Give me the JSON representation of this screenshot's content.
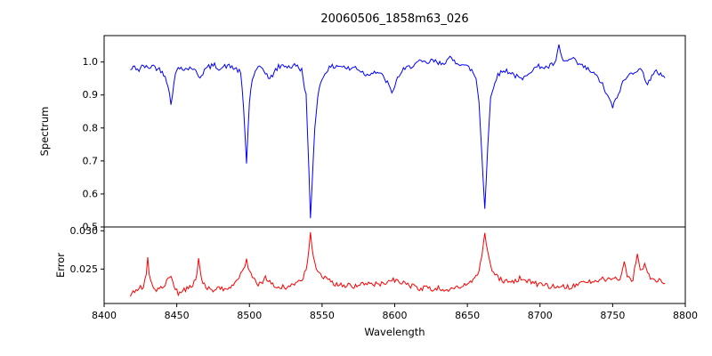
{
  "chart_data": {
    "type": "line",
    "title": "20060506_1858m63_026",
    "xlabel": "Wavelength",
    "xlim": [
      8400,
      8800
    ],
    "x_ticks": [
      8400,
      8450,
      8500,
      8550,
      8600,
      8650,
      8700,
      8750,
      8800
    ],
    "x_tick_labels": [
      "8400",
      "8450",
      "8500",
      "8550",
      "8600",
      "8650",
      "8700",
      "8750",
      "8800"
    ],
    "grid": false,
    "legend": "none",
    "background": "#ffffff",
    "frame_color": "#000000",
    "subplots": [
      {
        "name": "spectrum",
        "ylabel": "Spectrum",
        "ylim": [
          0.5,
          1.08
        ],
        "y_ticks": [
          0.5,
          0.6,
          0.7,
          0.8,
          0.9,
          1.0
        ],
        "y_tick_labels": [
          "0.5",
          "0.6",
          "0.7",
          "0.8",
          "0.9",
          "1.0"
        ],
        "series": [
          {
            "name": "spectrum",
            "color": "#0000ff",
            "noise": 0.008,
            "points": [
              [
                8418,
                0.975
              ],
              [
                8421,
                0.985
              ],
              [
                8424,
                0.975
              ],
              [
                8427,
                0.99
              ],
              [
                8430,
                0.98
              ],
              [
                8433,
                0.99
              ],
              [
                8436,
                0.982
              ],
              [
                8439,
                0.975
              ],
              [
                8442,
                0.96
              ],
              [
                8444,
                0.93
              ],
              [
                8446,
                0.87
              ],
              [
                8448,
                0.94
              ],
              [
                8450,
                0.975
              ],
              [
                8453,
                0.985
              ],
              [
                8457,
                0.978
              ],
              [
                8460,
                0.985
              ],
              [
                8463,
                0.97
              ],
              [
                8466,
                0.955
              ],
              [
                8469,
                0.975
              ],
              [
                8472,
                0.985
              ],
              [
                8476,
                0.99
              ],
              [
                8480,
                0.98
              ],
              [
                8484,
                0.988
              ],
              [
                8488,
                0.985
              ],
              [
                8492,
                0.975
              ],
              [
                8494,
                0.965
              ],
              [
                8496,
                0.86
              ],
              [
                8498,
                0.695
              ],
              [
                8500,
                0.88
              ],
              [
                8502,
                0.95
              ],
              [
                8505,
                0.975
              ],
              [
                8508,
                0.985
              ],
              [
                8511,
                0.97
              ],
              [
                8514,
                0.945
              ],
              [
                8517,
                0.97
              ],
              [
                8520,
                0.985
              ],
              [
                8524,
                0.99
              ],
              [
                8528,
                0.985
              ],
              [
                8532,
                0.99
              ],
              [
                8536,
                0.975
              ],
              [
                8539,
                0.9
              ],
              [
                8541,
                0.66
              ],
              [
                8542,
                0.52
              ],
              [
                8543,
                0.62
              ],
              [
                8545,
                0.8
              ],
              [
                8547,
                0.9
              ],
              [
                8550,
                0.95
              ],
              [
                8553,
                0.975
              ],
              [
                8557,
                0.985
              ],
              [
                8561,
                0.99
              ],
              [
                8565,
                0.985
              ],
              [
                8569,
                0.978
              ],
              [
                8573,
                0.985
              ],
              [
                8577,
                0.972
              ],
              [
                8581,
                0.96
              ],
              [
                8585,
                0.972
              ],
              [
                8589,
                0.968
              ],
              [
                8593,
                0.95
              ],
              [
                8596,
                0.93
              ],
              [
                8598,
                0.9
              ],
              [
                8600,
                0.93
              ],
              [
                8603,
                0.96
              ],
              [
                8606,
                0.975
              ],
              [
                8610,
                0.985
              ],
              [
                8614,
                0.995
              ],
              [
                8618,
                1.0
              ],
              [
                8622,
                0.995
              ],
              [
                8626,
                1.005
              ],
              [
                8630,
                0.995
              ],
              [
                8634,
                1.0
              ],
              [
                8638,
                1.01
              ],
              [
                8642,
                1.0
              ],
              [
                8646,
                0.995
              ],
              [
                8650,
                0.985
              ],
              [
                8653,
                0.975
              ],
              [
                8656,
                0.95
              ],
              [
                8658,
                0.88
              ],
              [
                8660,
                0.72
              ],
              [
                8662,
                0.555
              ],
              [
                8664,
                0.74
              ],
              [
                8666,
                0.89
              ],
              [
                8669,
                0.945
              ],
              [
                8672,
                0.965
              ],
              [
                8676,
                0.975
              ],
              [
                8680,
                0.968
              ],
              [
                8684,
                0.955
              ],
              [
                8688,
                0.945
              ],
              [
                8692,
                0.97
              ],
              [
                8696,
                0.98
              ],
              [
                8700,
                0.988
              ],
              [
                8704,
                0.982
              ],
              [
                8708,
                0.99
              ],
              [
                8711,
                1.0
              ],
              [
                8713,
                1.05
              ],
              [
                8715,
                1.01
              ],
              [
                8718,
                1.0
              ],
              [
                8722,
                1.01
              ],
              [
                8726,
                0.995
              ],
              [
                8730,
                0.985
              ],
              [
                8734,
                0.975
              ],
              [
                8738,
                0.96
              ],
              [
                8742,
                0.94
              ],
              [
                8746,
                0.9
              ],
              [
                8750,
                0.865
              ],
              [
                8753,
                0.89
              ],
              [
                8756,
                0.93
              ],
              [
                8760,
                0.955
              ],
              [
                8764,
                0.97
              ],
              [
                8768,
                0.98
              ],
              [
                8771,
                0.965
              ],
              [
                8774,
                0.935
              ],
              [
                8777,
                0.955
              ],
              [
                8780,
                0.97
              ],
              [
                8783,
                0.965
              ],
              [
                8786,
                0.955
              ]
            ]
          }
        ]
      },
      {
        "name": "error",
        "ylabel": "Error",
        "ylim": [
          0.0205,
          0.0305
        ],
        "y_ticks": [
          0.025,
          0.03
        ],
        "y_tick_labels": [
          "0.025",
          "0.030"
        ],
        "series": [
          {
            "name": "error",
            "color": "#ff0000",
            "noise": 0.00035,
            "points": [
              [
                8418,
                0.0215
              ],
              [
                8421,
                0.0222
              ],
              [
                8424,
                0.0225
              ],
              [
                8427,
                0.0228
              ],
              [
                8429,
                0.0242
              ],
              [
                8430,
                0.0265
              ],
              [
                8431,
                0.0245
              ],
              [
                8433,
                0.0228
              ],
              [
                8436,
                0.0222
              ],
              [
                8439,
                0.0224
              ],
              [
                8442,
                0.0228
              ],
              [
                8444,
                0.0238
              ],
              [
                8446,
                0.0242
              ],
              [
                8448,
                0.0228
              ],
              [
                8451,
                0.0218
              ],
              [
                8454,
                0.0222
              ],
              [
                8457,
                0.0225
              ],
              [
                8460,
                0.0228
              ],
              [
                8463,
                0.0235
              ],
              [
                8465,
                0.0262
              ],
              [
                8467,
                0.0235
              ],
              [
                8470,
                0.0226
              ],
              [
                8474,
                0.0222
              ],
              [
                8478,
                0.0224
              ],
              [
                8482,
                0.0225
              ],
              [
                8486,
                0.0226
              ],
              [
                8490,
                0.023
              ],
              [
                8493,
                0.0238
              ],
              [
                8496,
                0.0252
              ],
              [
                8498,
                0.0262
              ],
              [
                8500,
                0.0248
              ],
              [
                8502,
                0.0238
              ],
              [
                8505,
                0.023
              ],
              [
                8508,
                0.023
              ],
              [
                8511,
                0.0238
              ],
              [
                8514,
                0.0232
              ],
              [
                8517,
                0.0228
              ],
              [
                8520,
                0.0226
              ],
              [
                8524,
                0.0226
              ],
              [
                8528,
                0.0228
              ],
              [
                8532,
                0.023
              ],
              [
                8536,
                0.0234
              ],
              [
                8539,
                0.0252
              ],
              [
                8541,
                0.0275
              ],
              [
                8542,
                0.0296
              ],
              [
                8543,
                0.0278
              ],
              [
                8545,
                0.0258
              ],
              [
                8547,
                0.0246
              ],
              [
                8550,
                0.024
              ],
              [
                8553,
                0.0236
              ],
              [
                8556,
                0.0233
              ],
              [
                8560,
                0.023
              ],
              [
                8564,
                0.0229
              ],
              [
                8568,
                0.0228
              ],
              [
                8572,
                0.0228
              ],
              [
                8576,
                0.0229
              ],
              [
                8580,
                0.0231
              ],
              [
                8584,
                0.0229
              ],
              [
                8588,
                0.023
              ],
              [
                8592,
                0.0232
              ],
              [
                8596,
                0.0235
              ],
              [
                8599,
                0.0237
              ],
              [
                8602,
                0.0234
              ],
              [
                8606,
                0.0231
              ],
              [
                8610,
                0.0229
              ],
              [
                8614,
                0.0227
              ],
              [
                8618,
                0.0224
              ],
              [
                8622,
                0.0226
              ],
              [
                8626,
                0.0223
              ],
              [
                8630,
                0.0225
              ],
              [
                8634,
                0.0223
              ],
              [
                8638,
                0.0224
              ],
              [
                8642,
                0.0225
              ],
              [
                8646,
                0.0227
              ],
              [
                8650,
                0.0229
              ],
              [
                8654,
                0.0234
              ],
              [
                8657,
                0.0242
              ],
              [
                8660,
                0.0268
              ],
              [
                8662,
                0.0297
              ],
              [
                8664,
                0.0272
              ],
              [
                8666,
                0.0252
              ],
              [
                8669,
                0.0243
              ],
              [
                8672,
                0.0237
              ],
              [
                8676,
                0.0233
              ],
              [
                8680,
                0.0234
              ],
              [
                8684,
                0.0236
              ],
              [
                8688,
                0.0239
              ],
              [
                8692,
                0.0234
              ],
              [
                8696,
                0.0231
              ],
              [
                8700,
                0.0229
              ],
              [
                8704,
                0.0229
              ],
              [
                8708,
                0.0227
              ],
              [
                8712,
                0.0229
              ],
              [
                8716,
                0.0228
              ],
              [
                8720,
                0.0226
              ],
              [
                8724,
                0.0228
              ],
              [
                8728,
                0.023
              ],
              [
                8732,
                0.0232
              ],
              [
                8736,
                0.0233
              ],
              [
                8740,
                0.0235
              ],
              [
                8744,
                0.0237
              ],
              [
                8748,
                0.0238
              ],
              [
                8752,
                0.0237
              ],
              [
                8755,
                0.0236
              ],
              [
                8758,
                0.0262
              ],
              [
                8760,
                0.0242
              ],
              [
                8762,
                0.0236
              ],
              [
                8764,
                0.0237
              ],
              [
                8766,
                0.0258
              ],
              [
                8767,
                0.0273
              ],
              [
                8768,
                0.0258
              ],
              [
                8770,
                0.0246
              ],
              [
                8772,
                0.0258
              ],
              [
                8774,
                0.0244
              ],
              [
                8777,
                0.0238
              ],
              [
                8780,
                0.0236
              ],
              [
                8783,
                0.0234
              ],
              [
                8786,
                0.0232
              ]
            ]
          }
        ]
      }
    ]
  }
}
